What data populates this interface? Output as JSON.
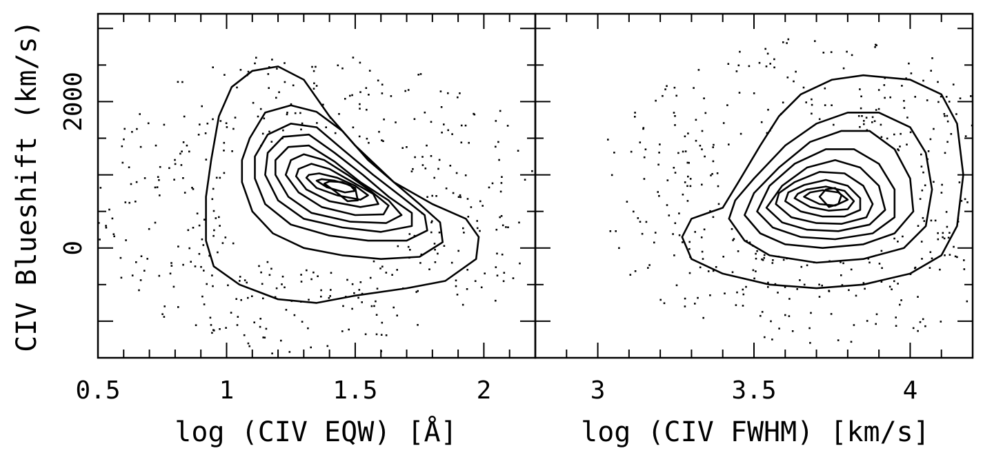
{
  "chart_data": [
    {
      "type": "scatter",
      "panel": "left",
      "xlabel": "log (CIV EQW) [Å]",
      "ylabel": "CIV Blueshift (km/s)",
      "xlim": [
        0.5,
        2.2
      ],
      "ylim": [
        -1500,
        3200
      ],
      "xticks": [
        0.5,
        1,
        1.5,
        2
      ],
      "xtick_labels": [
        "0.5",
        "1",
        "1.5",
        "2"
      ],
      "yticks": [
        0,
        2000
      ],
      "ytick_labels": [
        "0",
        "2000"
      ],
      "contours": [
        [
          [
            0.92,
            100
          ],
          [
            0.95,
            -250
          ],
          [
            1.05,
            -500
          ],
          [
            1.2,
            -700
          ],
          [
            1.35,
            -750
          ],
          [
            1.5,
            -650
          ],
          [
            1.7,
            -550
          ],
          [
            1.85,
            -450
          ],
          [
            1.97,
            -150
          ],
          [
            1.98,
            150
          ],
          [
            1.93,
            400
          ],
          [
            1.8,
            600
          ],
          [
            1.65,
            900
          ],
          [
            1.5,
            1400
          ],
          [
            1.4,
            1800
          ],
          [
            1.3,
            2300
          ],
          [
            1.2,
            2480
          ],
          [
            1.1,
            2420
          ],
          [
            1.02,
            2200
          ],
          [
            0.97,
            1800
          ],
          [
            0.94,
            1200
          ],
          [
            0.92,
            700
          ],
          [
            0.92,
            100
          ]
        ],
        [
          [
            1.06,
            900
          ],
          [
            1.1,
            500
          ],
          [
            1.18,
            200
          ],
          [
            1.3,
            0
          ],
          [
            1.45,
            -100
          ],
          [
            1.6,
            -150
          ],
          [
            1.75,
            -120
          ],
          [
            1.84,
            80
          ],
          [
            1.83,
            350
          ],
          [
            1.75,
            600
          ],
          [
            1.65,
            900
          ],
          [
            1.55,
            1200
          ],
          [
            1.45,
            1600
          ],
          [
            1.35,
            1860
          ],
          [
            1.25,
            1950
          ],
          [
            1.15,
            1850
          ],
          [
            1.09,
            1500
          ],
          [
            1.06,
            1200
          ],
          [
            1.06,
            900
          ]
        ],
        [
          [
            1.11,
            950
          ],
          [
            1.15,
            600
          ],
          [
            1.25,
            320
          ],
          [
            1.4,
            170
          ],
          [
            1.55,
            100
          ],
          [
            1.7,
            100
          ],
          [
            1.78,
            240
          ],
          [
            1.77,
            450
          ],
          [
            1.68,
            700
          ],
          [
            1.57,
            1000
          ],
          [
            1.45,
            1350
          ],
          [
            1.35,
            1650
          ],
          [
            1.25,
            1700
          ],
          [
            1.16,
            1550
          ],
          [
            1.11,
            1250
          ],
          [
            1.11,
            950
          ]
        ],
        [
          [
            1.15,
            1000
          ],
          [
            1.2,
            650
          ],
          [
            1.3,
            400
          ],
          [
            1.45,
            280
          ],
          [
            1.6,
            220
          ],
          [
            1.72,
            300
          ],
          [
            1.72,
            480
          ],
          [
            1.63,
            700
          ],
          [
            1.53,
            1000
          ],
          [
            1.42,
            1300
          ],
          [
            1.32,
            1550
          ],
          [
            1.22,
            1520
          ],
          [
            1.16,
            1300
          ],
          [
            1.15,
            1000
          ]
        ],
        [
          [
            1.19,
            1000
          ],
          [
            1.24,
            700
          ],
          [
            1.33,
            480
          ],
          [
            1.48,
            360
          ],
          [
            1.62,
            340
          ],
          [
            1.68,
            450
          ],
          [
            1.63,
            650
          ],
          [
            1.52,
            900
          ],
          [
            1.42,
            1180
          ],
          [
            1.32,
            1400
          ],
          [
            1.24,
            1380
          ],
          [
            1.19,
            1200
          ],
          [
            1.19,
            1000
          ]
        ],
        [
          [
            1.23,
            1000
          ],
          [
            1.28,
            760
          ],
          [
            1.37,
            560
          ],
          [
            1.5,
            450
          ],
          [
            1.61,
            460
          ],
          [
            1.63,
            580
          ],
          [
            1.56,
            780
          ],
          [
            1.47,
            1000
          ],
          [
            1.38,
            1200
          ],
          [
            1.3,
            1280
          ],
          [
            1.25,
            1200
          ],
          [
            1.23,
            1000
          ]
        ],
        [
          [
            1.27,
            980
          ],
          [
            1.31,
            800
          ],
          [
            1.4,
            640
          ],
          [
            1.52,
            560
          ],
          [
            1.59,
            600
          ],
          [
            1.57,
            740
          ],
          [
            1.49,
            900
          ],
          [
            1.4,
            1080
          ],
          [
            1.33,
            1150
          ],
          [
            1.28,
            1080
          ],
          [
            1.27,
            980
          ]
        ],
        [
          [
            1.31,
            960
          ],
          [
            1.35,
            820
          ],
          [
            1.43,
            720
          ],
          [
            1.52,
            660
          ],
          [
            1.55,
            720
          ],
          [
            1.5,
            850
          ],
          [
            1.43,
            960
          ],
          [
            1.36,
            1020
          ],
          [
            1.32,
            1000
          ],
          [
            1.31,
            960
          ]
        ],
        [
          [
            1.35,
            920
          ],
          [
            1.39,
            830
          ],
          [
            1.46,
            760
          ],
          [
            1.5,
            780
          ],
          [
            1.48,
            860
          ],
          [
            1.42,
            920
          ],
          [
            1.37,
            940
          ],
          [
            1.35,
            920
          ]
        ],
        [
          [
            1.38,
            880
          ],
          [
            1.42,
            780
          ],
          [
            1.47,
            640
          ],
          [
            1.51,
            650
          ],
          [
            1.5,
            820
          ],
          [
            1.45,
            900
          ],
          [
            1.4,
            910
          ],
          [
            1.38,
            880
          ]
        ]
      ]
    },
    {
      "type": "scatter",
      "panel": "right",
      "xlabel": "log (CIV FWHM) [km/s]",
      "ylabel": "",
      "xlim": [
        2.8,
        4.2
      ],
      "ylim": [
        -1500,
        3200
      ],
      "xticks": [
        3,
        3.5,
        4
      ],
      "xtick_labels": [
        "3",
        "3.5",
        "4"
      ],
      "yticks": [
        0,
        2000
      ],
      "ytick_labels": [
        "",
        ""
      ],
      "contours": [
        [
          [
            3.27,
            150
          ],
          [
            3.3,
            -150
          ],
          [
            3.4,
            -350
          ],
          [
            3.55,
            -500
          ],
          [
            3.7,
            -550
          ],
          [
            3.85,
            -500
          ],
          [
            4.0,
            -350
          ],
          [
            4.1,
            -100
          ],
          [
            4.15,
            300
          ],
          [
            4.17,
            1000
          ],
          [
            4.15,
            1700
          ],
          [
            4.1,
            2100
          ],
          [
            4.0,
            2300
          ],
          [
            3.85,
            2360
          ],
          [
            3.75,
            2300
          ],
          [
            3.65,
            2100
          ],
          [
            3.58,
            1800
          ],
          [
            3.52,
            1400
          ],
          [
            3.45,
            900
          ],
          [
            3.4,
            550
          ],
          [
            3.3,
            400
          ],
          [
            3.27,
            150
          ]
        ],
        [
          [
            3.42,
            400
          ],
          [
            3.47,
            100
          ],
          [
            3.55,
            -100
          ],
          [
            3.7,
            -200
          ],
          [
            3.85,
            -150
          ],
          [
            3.98,
            0
          ],
          [
            4.05,
            300
          ],
          [
            4.07,
            800
          ],
          [
            4.05,
            1300
          ],
          [
            4.0,
            1650
          ],
          [
            3.9,
            1850
          ],
          [
            3.8,
            1850
          ],
          [
            3.7,
            1700
          ],
          [
            3.6,
            1400
          ],
          [
            3.5,
            950
          ],
          [
            3.44,
            650
          ],
          [
            3.42,
            400
          ]
        ],
        [
          [
            3.47,
            450
          ],
          [
            3.52,
            200
          ],
          [
            3.6,
            50
          ],
          [
            3.72,
            0
          ],
          [
            3.85,
            50
          ],
          [
            3.95,
            200
          ],
          [
            4.01,
            500
          ],
          [
            4.0,
            950
          ],
          [
            3.95,
            1350
          ],
          [
            3.87,
            1600
          ],
          [
            3.78,
            1600
          ],
          [
            3.68,
            1450
          ],
          [
            3.58,
            1100
          ],
          [
            3.5,
            750
          ],
          [
            3.47,
            450
          ]
        ],
        [
          [
            3.51,
            500
          ],
          [
            3.56,
            280
          ],
          [
            3.65,
            150
          ],
          [
            3.76,
            120
          ],
          [
            3.88,
            200
          ],
          [
            3.95,
            420
          ],
          [
            3.95,
            800
          ],
          [
            3.9,
            1150
          ],
          [
            3.82,
            1350
          ],
          [
            3.73,
            1350
          ],
          [
            3.63,
            1150
          ],
          [
            3.55,
            850
          ],
          [
            3.51,
            500
          ]
        ],
        [
          [
            3.54,
            550
          ],
          [
            3.59,
            350
          ],
          [
            3.67,
            250
          ],
          [
            3.77,
            230
          ],
          [
            3.87,
            320
          ],
          [
            3.92,
            520
          ],
          [
            3.9,
            850
          ],
          [
            3.84,
            1100
          ],
          [
            3.76,
            1200
          ],
          [
            3.67,
            1100
          ],
          [
            3.59,
            850
          ],
          [
            3.54,
            550
          ]
        ],
        [
          [
            3.57,
            600
          ],
          [
            3.62,
            420
          ],
          [
            3.7,
            340
          ],
          [
            3.78,
            330
          ],
          [
            3.86,
            420
          ],
          [
            3.88,
            600
          ],
          [
            3.85,
            850
          ],
          [
            3.79,
            1020
          ],
          [
            3.71,
            1040
          ],
          [
            3.63,
            900
          ],
          [
            3.58,
            750
          ],
          [
            3.57,
            600
          ]
        ],
        [
          [
            3.6,
            640
          ],
          [
            3.65,
            500
          ],
          [
            3.72,
            430
          ],
          [
            3.79,
            430
          ],
          [
            3.84,
            520
          ],
          [
            3.84,
            680
          ],
          [
            3.8,
            850
          ],
          [
            3.73,
            930
          ],
          [
            3.66,
            860
          ],
          [
            3.61,
            760
          ],
          [
            3.6,
            640
          ]
        ],
        [
          [
            3.63,
            680
          ],
          [
            3.68,
            560
          ],
          [
            3.74,
            510
          ],
          [
            3.8,
            530
          ],
          [
            3.82,
            640
          ],
          [
            3.79,
            780
          ],
          [
            3.73,
            840
          ],
          [
            3.67,
            800
          ],
          [
            3.64,
            740
          ],
          [
            3.63,
            680
          ]
        ],
        [
          [
            3.66,
            700
          ],
          [
            3.71,
            600
          ],
          [
            3.76,
            580
          ],
          [
            3.8,
            660
          ],
          [
            3.77,
            760
          ],
          [
            3.72,
            790
          ],
          [
            3.68,
            760
          ],
          [
            3.66,
            700
          ]
        ],
        [
          [
            3.71,
            700
          ],
          [
            3.74,
            560
          ],
          [
            3.77,
            600
          ],
          [
            3.78,
            720
          ],
          [
            3.76,
            820
          ],
          [
            3.73,
            800
          ],
          [
            3.71,
            700
          ]
        ]
      ]
    }
  ]
}
